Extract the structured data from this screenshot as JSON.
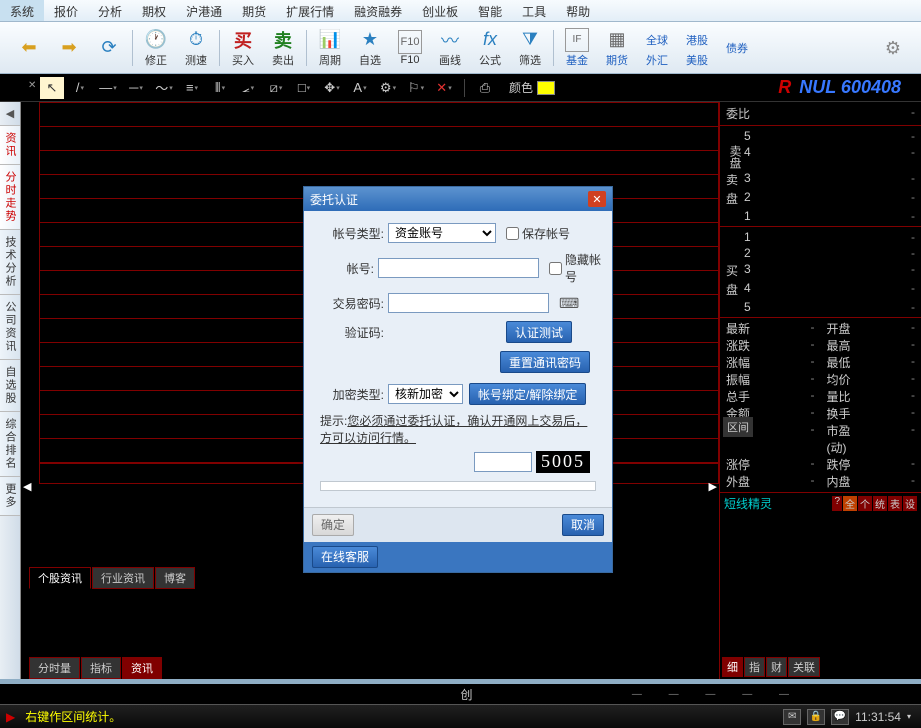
{
  "menubar": [
    "系统",
    "报价",
    "分析",
    "期权",
    "沪港通",
    "期货",
    "扩展行情",
    "融资融券",
    "创业板",
    "智能",
    "工具",
    "帮助"
  ],
  "toolbar": [
    {
      "icon": "⬅",
      "label": "",
      "color": "#d8a020"
    },
    {
      "icon": "➡",
      "label": "",
      "color": "#d8a020"
    },
    {
      "icon": "🔄",
      "label": "",
      "color": "#2a80c0"
    },
    {
      "icon": "🕐",
      "label": "修正",
      "color": "#d8a020"
    },
    {
      "icon": "⏱",
      "label": "测速",
      "color": "#2a80c0"
    },
    {
      "icon": "买",
      "label": "买入",
      "color": "#c02020",
      "style": "red"
    },
    {
      "icon": "卖",
      "label": "卖出",
      "color": "#208020",
      "style": "green"
    },
    {
      "icon": "📊",
      "label": "周期",
      "color": "#2a80c0"
    },
    {
      "icon": "★",
      "label": "自选",
      "color": "#2a80c0"
    },
    {
      "icon": "F10",
      "label": "F10",
      "color": "#666",
      "small": true
    },
    {
      "icon": "〰",
      "label": "画线",
      "color": "#2a80c0"
    },
    {
      "icon": "fx",
      "label": "公式",
      "color": "#2a80c0"
    },
    {
      "icon": "⚙",
      "label": "筛选",
      "color": "#2a80c0"
    },
    {
      "icon": "IF",
      "label": "基金",
      "blue": true
    },
    {
      "icon": "▦",
      "label": "期货",
      "blue": true
    },
    {
      "icon": "全球",
      "label": "外汇",
      "blue": true,
      "text": true
    },
    {
      "icon": "港股",
      "label": "美股",
      "blue": true,
      "text": true
    },
    {
      "icon": "债券",
      "label": "",
      "blue": true,
      "text": true
    }
  ],
  "gear_title": "设置",
  "drawbar": {
    "items": [
      "↖",
      "/",
      "—",
      "—",
      "〜",
      "≡",
      "⫼",
      "⦀",
      "⦂",
      "⧄",
      "□",
      "✥",
      "A",
      "⚙",
      "⚐",
      "✕",
      "⎙"
    ],
    "color_label": "颜色"
  },
  "stock_code": {
    "r": "R",
    "code": "NUL 600408"
  },
  "left_nav": [
    "资讯",
    "分时走势",
    "技术分析",
    "公司资讯",
    "自选股",
    "综合排名",
    "更多"
  ],
  "left_nav_active_index": 0,
  "bottom_tabs": [
    "个股资讯",
    "行业资讯",
    "博客"
  ],
  "bottom_tabs_active": 0,
  "bottom_tabs2": [
    "分时量",
    "指标",
    "资讯"
  ],
  "bottom_tabs2_active": 2,
  "right_panel": {
    "weibi": {
      "label": "委比",
      "value": "-"
    },
    "sell": {
      "label": "卖盘",
      "levels": [
        "5",
        "4",
        "3",
        "2",
        "1"
      ],
      "values": [
        "-",
        "-",
        "-",
        "-",
        "-"
      ]
    },
    "buy": {
      "label": "买盘",
      "levels": [
        "1",
        "2",
        "3",
        "4",
        "5"
      ],
      "values": [
        "-",
        "-",
        "-",
        "-",
        "-"
      ]
    },
    "grid": [
      [
        "最新",
        "-",
        "开盘",
        "-"
      ],
      [
        "涨跌",
        "-",
        "最高",
        "-"
      ],
      [
        "涨幅",
        "-",
        "最低",
        "-"
      ],
      [
        "振幅",
        "-",
        "均价",
        "-"
      ],
      [
        "总手",
        "-",
        "量比",
        "-"
      ],
      [
        "金额",
        "-",
        "换手",
        "-"
      ],
      [
        "市盈",
        "-",
        "市盈(动)",
        "-"
      ],
      [
        "涨停",
        "-",
        "跌停",
        "-"
      ],
      [
        "外盘",
        "-",
        "内盘",
        "-"
      ]
    ],
    "shortline": {
      "title": "短线精灵",
      "badges": [
        "?",
        "全",
        "个",
        "统",
        "表",
        "设"
      ]
    },
    "lower_tabs": [
      "细",
      "指",
      "财",
      "关联"
    ],
    "lower_tabs_active": 0
  },
  "qujian_label": "区间",
  "status2": {
    "chuang": "创"
  },
  "statusbar": {
    "left": "右键作区间统计。",
    "time": "11:31:54"
  },
  "modal": {
    "title": "委托认证",
    "account_type": {
      "label": "帐号类型:",
      "value": "资金账号",
      "save": "保存帐号"
    },
    "account": {
      "label": "帐号:",
      "value": "",
      "hide": "隐藏帐号"
    },
    "password": {
      "label": "交易密码:",
      "value": ""
    },
    "verify": {
      "label": "验证码:",
      "btn": "认证测试"
    },
    "reset_btn": "重置通讯密码",
    "encrypt": {
      "label": "加密类型:",
      "value": "核新加密",
      "bind_btn": "帐号绑定/解除绑定"
    },
    "hint_prefix": "提示:",
    "hint": "您必须通过委托认证，确认开通网上交易后，方可以访问行情。",
    "captcha": "5005",
    "ok": "确定",
    "cancel": "取消",
    "service": "在线客服"
  }
}
